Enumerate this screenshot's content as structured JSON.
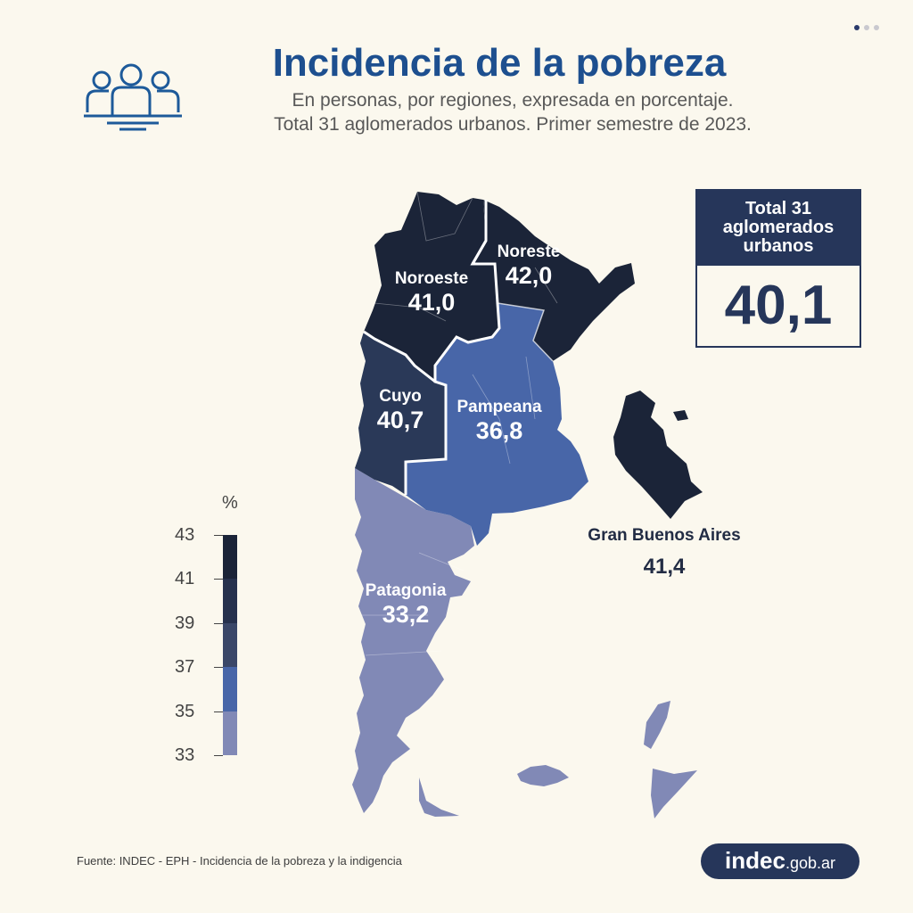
{
  "title": "Incidencia de la pobreza",
  "subtitle_lines": [
    "En personas, por regiones, expresada en porcentaje.",
    "Total 31 aglomerados urbanos. Primer semestre de 2023."
  ],
  "icon": "people-group-icon",
  "regions": [
    {
      "name": "Noroeste",
      "value": "41,0",
      "color": "#1b2438"
    },
    {
      "name": "Noreste",
      "value": "42,0",
      "color": "#1b2438"
    },
    {
      "name": "Cuyo",
      "value": "40,7",
      "color": "#2a3958"
    },
    {
      "name": "Pampeana",
      "value": "36,8",
      "color": "#4866a8"
    },
    {
      "name": "Patagonia",
      "value": "33,2",
      "color": "#8189b6"
    },
    {
      "name": "Gran Buenos Aires",
      "value": "41,4",
      "color": "#1b2438"
    }
  ],
  "total": {
    "label_lines": [
      "Total 31",
      "aglomerados",
      "urbanos"
    ],
    "value": "40,1"
  },
  "legend": {
    "unit": "%",
    "ticks": [
      "43",
      "41",
      "39",
      "37",
      "35",
      "33"
    ],
    "colors": [
      "#1b2438",
      "#26314d",
      "#3a4768",
      "#4866a8",
      "#8189b6"
    ]
  },
  "source": "Fuente: INDEC - EPH - Incidencia de la pobreza y la indigencia",
  "logo": {
    "main": "indec",
    "tld": ".gob.ar"
  }
}
